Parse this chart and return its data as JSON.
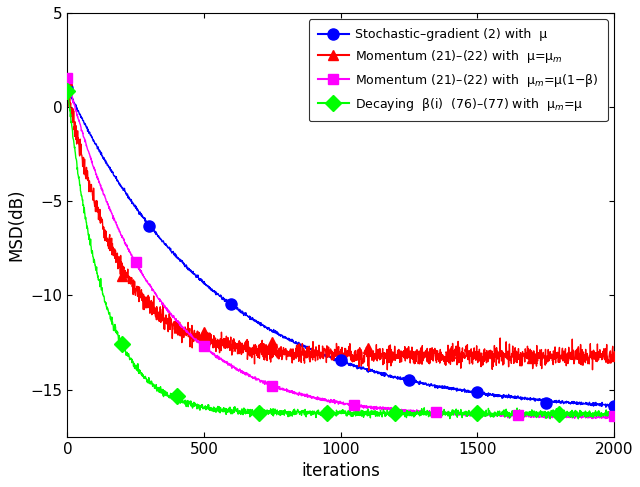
{
  "title": "",
  "xlabel": "iterations",
  "ylabel": "MSD(dB)",
  "xlim": [
    0,
    2000
  ],
  "ylim": [
    -17.5,
    5
  ],
  "yticks": [
    5,
    0,
    -5,
    -10,
    -15
  ],
  "xticks": [
    0,
    500,
    1000,
    1500,
    2000
  ],
  "legend_labels": [
    "Stochastic–gradient (2) with  μ",
    "Momentum (21)–(22) with  μ=μ$_m$",
    "Momentum (21)–(22) with  μ$_m$=μ(1−β)",
    "Decaying  β(i)  (76)–(77) with  μ$_m$=μ"
  ],
  "line_colors": [
    "blue",
    "red",
    "magenta",
    "lime"
  ],
  "marker_styles": [
    "o",
    "^",
    "s",
    "D"
  ],
  "marker_sizes": [
    8,
    7,
    7,
    8
  ],
  "background_color": "#ffffff",
  "blue_floor": -16.3,
  "blue_start": 1.0,
  "blue_tau": 550,
  "red_floor": -13.2,
  "red_start": 1.0,
  "red_tau": 180,
  "red_noise": 0.25,
  "magenta_floor": -16.5,
  "magenta_start": 1.5,
  "magenta_tau": 320,
  "green_floor": -16.3,
  "green_start": 1.0,
  "green_tau1": 130,
  "green_tau2": 600,
  "green_breakpoint": 700
}
